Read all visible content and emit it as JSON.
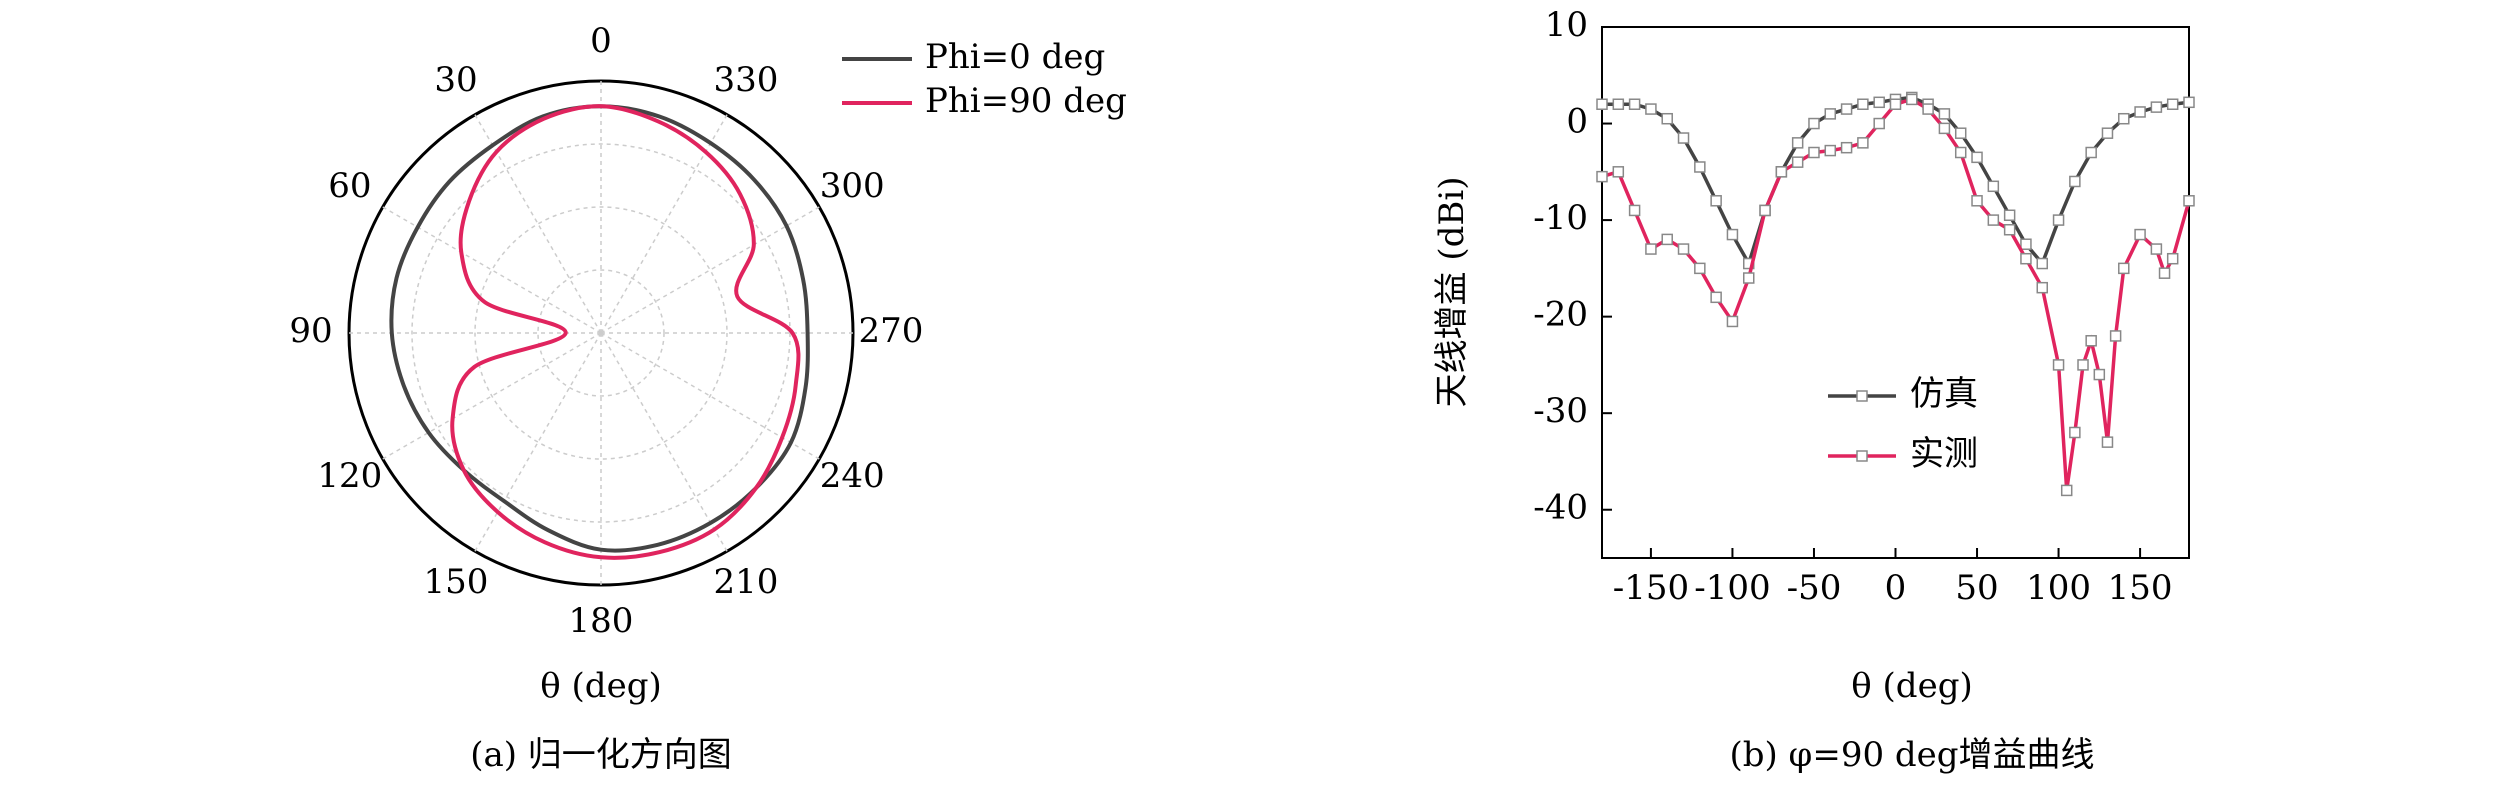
{
  "chart_data": [
    {
      "type": "polar",
      "theta_direction": "counterclockwise",
      "theta_zero": "top",
      "thetaticks": [
        0,
        30,
        60,
        90,
        120,
        150,
        180,
        210,
        240,
        270,
        300,
        330
      ],
      "rlim": [
        0,
        1
      ],
      "rticks": [
        0.25,
        0.5,
        0.75,
        1
      ],
      "grid": true,
      "xlabel": "θ (deg)",
      "caption": "(a) 归一化方向图",
      "legend": "upper right",
      "theta": [
        0,
        15,
        30,
        45,
        60,
        75,
        90,
        105,
        120,
        135,
        150,
        165,
        180,
        195,
        210,
        225,
        240,
        255,
        270,
        285,
        300,
        315,
        330,
        345
      ],
      "series": [
        {
          "name": "Phi=0 deg",
          "color": "#444444",
          "values": [
            0.9,
            0.89,
            0.86,
            0.85,
            0.84,
            0.84,
            0.83,
            0.81,
            0.79,
            0.77,
            0.77,
            0.81,
            0.86,
            0.87,
            0.87,
            0.87,
            0.87,
            0.84,
            0.82,
            0.83,
            0.85,
            0.86,
            0.87,
            0.89
          ]
        },
        {
          "name": "Phi=90 deg",
          "color": "#e0245e",
          "values": [
            0.9,
            0.88,
            0.83,
            0.74,
            0.64,
            0.48,
            0.14,
            0.52,
            0.68,
            0.77,
            0.82,
            0.86,
            0.89,
            0.9,
            0.9,
            0.87,
            0.83,
            0.8,
            0.76,
            0.56,
            0.7,
            0.78,
            0.83,
            0.87
          ]
        }
      ]
    },
    {
      "type": "line",
      "xlabel": "θ (deg)",
      "ylabel": "天线增益 (dBi)",
      "caption": "(b) φ=90 deg增益曲线",
      "xlim": [
        -180,
        180
      ],
      "xticks": [
        -150,
        -100,
        -50,
        0,
        50,
        100,
        150
      ],
      "ylim": [
        -45,
        10
      ],
      "yticks": [
        -40,
        -30,
        -20,
        -10,
        0,
        10
      ],
      "grid": false,
      "legend": "lower center",
      "series": [
        {
          "name": "仿真",
          "color": "#444444",
          "x": [
            -180,
            -170,
            -160,
            -150,
            -140,
            -130,
            -120,
            -110,
            -100,
            -90,
            -80,
            -70,
            -60,
            -50,
            -40,
            -30,
            -20,
            -10,
            0,
            10,
            20,
            30,
            40,
            50,
            60,
            70,
            80,
            90,
            100,
            110,
            120,
            130,
            140,
            150,
            160,
            170,
            180
          ],
          "values": [
            2,
            2,
            2,
            1.5,
            0.5,
            -1.5,
            -4.5,
            -8,
            -11.5,
            -14.5,
            -9,
            -5,
            -2,
            0,
            1,
            1.5,
            2,
            2.2,
            2.5,
            2.7,
            2,
            1,
            -1,
            -3.5,
            -6.5,
            -9.5,
            -12.5,
            -14.5,
            -10,
            -6,
            -3,
            -1,
            0.5,
            1.2,
            1.7,
            2,
            2.2
          ]
        },
        {
          "name": "实测",
          "color": "#e0245e",
          "x": [
            -180,
            -170,
            -160,
            -150,
            -140,
            -130,
            -120,
            -110,
            -100,
            -90,
            -80,
            -70,
            -60,
            -50,
            -40,
            -30,
            -20,
            -10,
            0,
            10,
            20,
            30,
            40,
            50,
            60,
            70,
            80,
            90,
            100,
            105,
            110,
            115,
            120,
            125,
            130,
            135,
            140,
            150,
            160,
            165,
            170,
            180
          ],
          "values": [
            -5.5,
            -5,
            -9,
            -13,
            -12,
            -13,
            -15,
            -18,
            -20.5,
            -16,
            -9,
            -5,
            -4,
            -3,
            -2.8,
            -2.5,
            -2,
            0,
            2,
            2.5,
            1.5,
            -0.5,
            -3,
            -8,
            -10,
            -11,
            -14,
            -17,
            -25,
            -38,
            -32,
            -25,
            -22.5,
            -26,
            -33,
            -22,
            -15,
            -11.5,
            -13,
            -15.5,
            -14,
            -8
          ]
        }
      ]
    }
  ]
}
